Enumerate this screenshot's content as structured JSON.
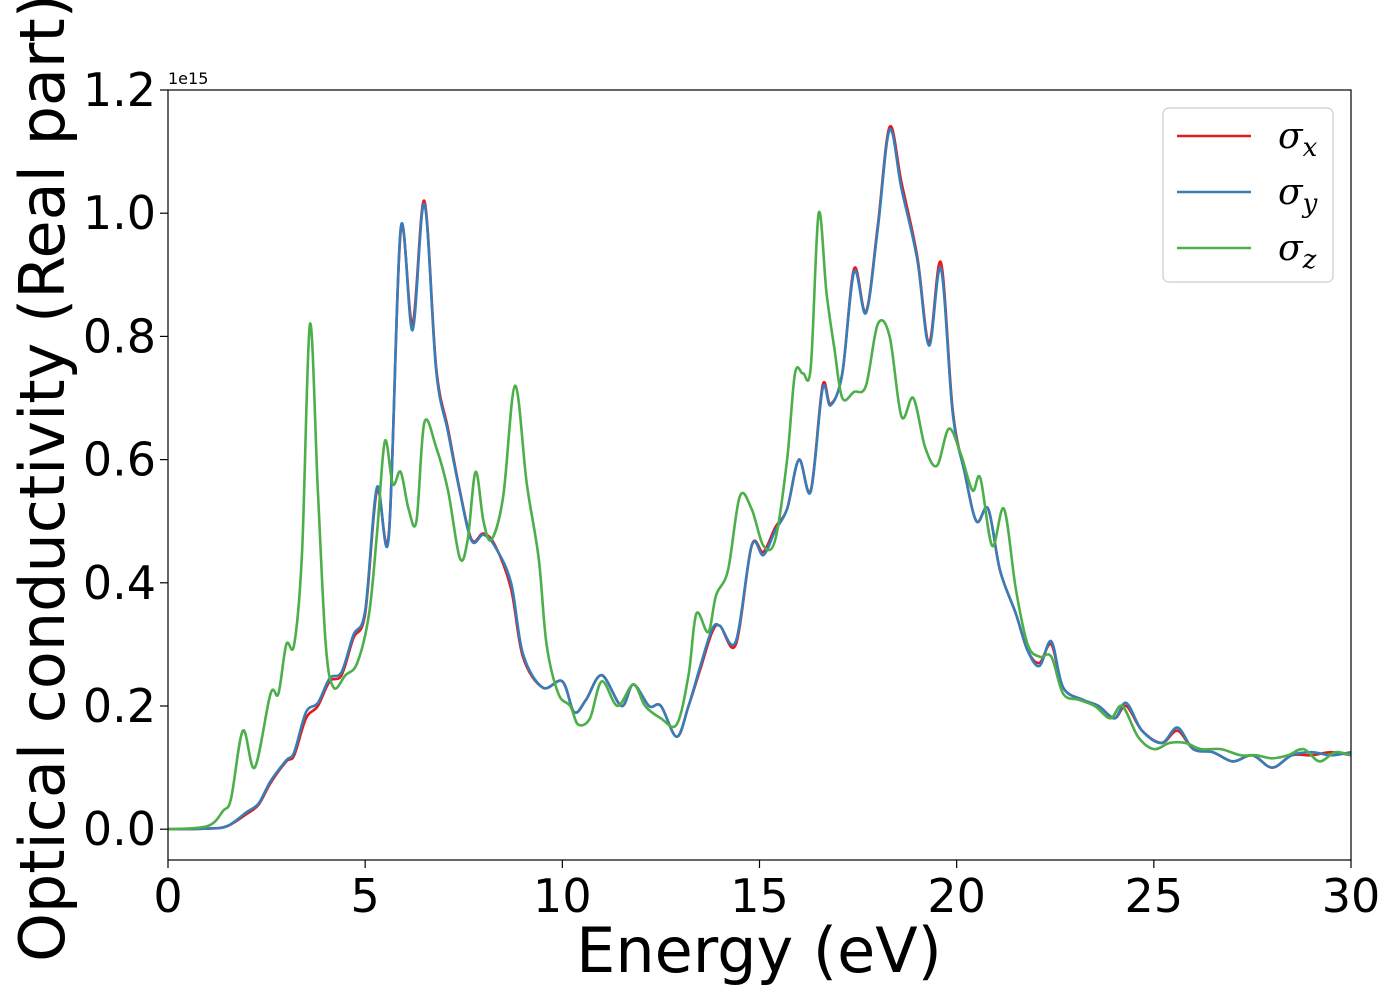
{
  "chart_data": {
    "type": "line",
    "xlabel": "Energy (eV)",
    "ylabel": "Optical conductivity (Real part)",
    "y_offset_label": "1e15",
    "xlim": [
      0,
      30
    ],
    "ylim": [
      -0.05,
      1.2
    ],
    "xticks": [
      0,
      5,
      10,
      15,
      20,
      25,
      30
    ],
    "xtick_labels": [
      "0",
      "5",
      "10",
      "15",
      "20",
      "25",
      "30"
    ],
    "yticks": [
      0.0,
      0.2,
      0.4,
      0.6,
      0.8,
      1.0,
      1.2
    ],
    "ytick_labels": [
      "0.0",
      "0.2",
      "0.4",
      "0.6",
      "0.8",
      "1.0",
      "1.2"
    ],
    "grid": false,
    "legend_position": "top-right",
    "series": [
      {
        "name": "σx",
        "symbol": "σ",
        "subscript": "x",
        "color": "#e41a1c",
        "points": [
          [
            0,
            0
          ],
          [
            1,
            0.001
          ],
          [
            1.5,
            0.005
          ],
          [
            2,
            0.025
          ],
          [
            2.3,
            0.04
          ],
          [
            2.6,
            0.075
          ],
          [
            3,
            0.11
          ],
          [
            3.2,
            0.12
          ],
          [
            3.5,
            0.18
          ],
          [
            3.8,
            0.2
          ],
          [
            4.1,
            0.24
          ],
          [
            4.4,
            0.25
          ],
          [
            4.7,
            0.31
          ],
          [
            5,
            0.35
          ],
          [
            5.3,
            0.55
          ],
          [
            5.6,
            0.48
          ],
          [
            5.9,
            0.97
          ],
          [
            6.2,
            0.82
          ],
          [
            6.5,
            1.02
          ],
          [
            6.8,
            0.75
          ],
          [
            7.1,
            0.65
          ],
          [
            7.4,
            0.55
          ],
          [
            7.7,
            0.47
          ],
          [
            8.0,
            0.48
          ],
          [
            8.3,
            0.46
          ],
          [
            8.7,
            0.39
          ],
          [
            9.0,
            0.28
          ],
          [
            9.5,
            0.23
          ],
          [
            10,
            0.24
          ],
          [
            10.3,
            0.19
          ],
          [
            10.6,
            0.21
          ],
          [
            11,
            0.25
          ],
          [
            11.5,
            0.2
          ],
          [
            11.8,
            0.235
          ],
          [
            12.2,
            0.2
          ],
          [
            12.5,
            0.2
          ],
          [
            12.9,
            0.15
          ],
          [
            13.2,
            0.2
          ],
          [
            13.5,
            0.26
          ],
          [
            13.8,
            0.32
          ],
          [
            14.0,
            0.33
          ],
          [
            14.4,
            0.3
          ],
          [
            14.8,
            0.46
          ],
          [
            15.1,
            0.45
          ],
          [
            15.4,
            0.49
          ],
          [
            15.7,
            0.52
          ],
          [
            16.0,
            0.6
          ],
          [
            16.3,
            0.55
          ],
          [
            16.6,
            0.72
          ],
          [
            16.8,
            0.69
          ],
          [
            17.1,
            0.74
          ],
          [
            17.4,
            0.91
          ],
          [
            17.7,
            0.84
          ],
          [
            18.0,
            0.98
          ],
          [
            18.3,
            1.14
          ],
          [
            18.6,
            1.05
          ],
          [
            19.0,
            0.93
          ],
          [
            19.3,
            0.79
          ],
          [
            19.6,
            0.92
          ],
          [
            19.9,
            0.68
          ],
          [
            20.2,
            0.58
          ],
          [
            20.5,
            0.5
          ],
          [
            20.8,
            0.52
          ],
          [
            21.1,
            0.42
          ],
          [
            21.5,
            0.35
          ],
          [
            21.8,
            0.29
          ],
          [
            22.1,
            0.27
          ],
          [
            22.4,
            0.3
          ],
          [
            22.7,
            0.23
          ],
          [
            23.2,
            0.21
          ],
          [
            23.6,
            0.2
          ],
          [
            24.0,
            0.18
          ],
          [
            24.3,
            0.2
          ],
          [
            24.7,
            0.16
          ],
          [
            25.2,
            0.14
          ],
          [
            25.6,
            0.16
          ],
          [
            26.0,
            0.13
          ],
          [
            26.5,
            0.125
          ],
          [
            27.0,
            0.11
          ],
          [
            27.5,
            0.12
          ],
          [
            28.0,
            0.1
          ],
          [
            28.5,
            0.12
          ],
          [
            29.0,
            0.12
          ],
          [
            29.5,
            0.125
          ],
          [
            30,
            0.12
          ]
        ]
      },
      {
        "name": "σy",
        "symbol": "σ",
        "subscript": "y",
        "color": "#377eb8",
        "points": [
          [
            0,
            0
          ],
          [
            1,
            0.001
          ],
          [
            1.5,
            0.005
          ],
          [
            2,
            0.028
          ],
          [
            2.3,
            0.042
          ],
          [
            2.6,
            0.078
          ],
          [
            3,
            0.112
          ],
          [
            3.2,
            0.125
          ],
          [
            3.5,
            0.19
          ],
          [
            3.8,
            0.205
          ],
          [
            4.1,
            0.245
          ],
          [
            4.4,
            0.255
          ],
          [
            4.7,
            0.315
          ],
          [
            5,
            0.355
          ],
          [
            5.3,
            0.555
          ],
          [
            5.6,
            0.475
          ],
          [
            5.9,
            0.975
          ],
          [
            6.2,
            0.81
          ],
          [
            6.5,
            1.015
          ],
          [
            6.8,
            0.745
          ],
          [
            7.1,
            0.645
          ],
          [
            7.4,
            0.548
          ],
          [
            7.7,
            0.468
          ],
          [
            8.0,
            0.478
          ],
          [
            8.3,
            0.458
          ],
          [
            8.7,
            0.4
          ],
          [
            9.0,
            0.285
          ],
          [
            9.5,
            0.23
          ],
          [
            10,
            0.24
          ],
          [
            10.3,
            0.19
          ],
          [
            10.6,
            0.21
          ],
          [
            11,
            0.25
          ],
          [
            11.5,
            0.2
          ],
          [
            11.8,
            0.235
          ],
          [
            12.2,
            0.2
          ],
          [
            12.5,
            0.2
          ],
          [
            12.9,
            0.15
          ],
          [
            13.2,
            0.2
          ],
          [
            13.5,
            0.265
          ],
          [
            13.8,
            0.325
          ],
          [
            14.0,
            0.33
          ],
          [
            14.4,
            0.305
          ],
          [
            14.8,
            0.46
          ],
          [
            15.1,
            0.445
          ],
          [
            15.4,
            0.485
          ],
          [
            15.7,
            0.52
          ],
          [
            16.0,
            0.6
          ],
          [
            16.3,
            0.548
          ],
          [
            16.6,
            0.715
          ],
          [
            16.8,
            0.688
          ],
          [
            17.1,
            0.74
          ],
          [
            17.4,
            0.905
          ],
          [
            17.7,
            0.838
          ],
          [
            18.0,
            0.975
          ],
          [
            18.3,
            1.135
          ],
          [
            18.6,
            1.04
          ],
          [
            19.0,
            0.925
          ],
          [
            19.3,
            0.785
          ],
          [
            19.6,
            0.91
          ],
          [
            19.9,
            0.675
          ],
          [
            20.2,
            0.58
          ],
          [
            20.5,
            0.5
          ],
          [
            20.8,
            0.52
          ],
          [
            21.1,
            0.42
          ],
          [
            21.5,
            0.35
          ],
          [
            21.8,
            0.29
          ],
          [
            22.1,
            0.265
          ],
          [
            22.4,
            0.305
          ],
          [
            22.7,
            0.23
          ],
          [
            23.2,
            0.21
          ],
          [
            23.6,
            0.2
          ],
          [
            24.0,
            0.18
          ],
          [
            24.3,
            0.205
          ],
          [
            24.7,
            0.16
          ],
          [
            25.2,
            0.14
          ],
          [
            25.6,
            0.165
          ],
          [
            26.0,
            0.13
          ],
          [
            26.5,
            0.125
          ],
          [
            27.0,
            0.11
          ],
          [
            27.5,
            0.12
          ],
          [
            28.0,
            0.1
          ],
          [
            28.5,
            0.12
          ],
          [
            29.0,
            0.125
          ],
          [
            29.5,
            0.12
          ],
          [
            30,
            0.125
          ]
        ]
      },
      {
        "name": "σz",
        "symbol": "σ",
        "subscript": "z",
        "color": "#4daf4a",
        "points": [
          [
            0,
            0
          ],
          [
            1,
            0.005
          ],
          [
            1.4,
            0.03
          ],
          [
            1.6,
            0.05
          ],
          [
            1.9,
            0.16
          ],
          [
            2.2,
            0.1
          ],
          [
            2.6,
            0.22
          ],
          [
            2.8,
            0.22
          ],
          [
            3.0,
            0.3
          ],
          [
            3.2,
            0.3
          ],
          [
            3.4,
            0.45
          ],
          [
            3.6,
            0.82
          ],
          [
            3.8,
            0.55
          ],
          [
            4.0,
            0.3
          ],
          [
            4.2,
            0.23
          ],
          [
            4.5,
            0.25
          ],
          [
            4.8,
            0.27
          ],
          [
            5.1,
            0.35
          ],
          [
            5.3,
            0.48
          ],
          [
            5.5,
            0.63
          ],
          [
            5.7,
            0.56
          ],
          [
            5.9,
            0.58
          ],
          [
            6.1,
            0.52
          ],
          [
            6.3,
            0.5
          ],
          [
            6.5,
            0.66
          ],
          [
            6.8,
            0.62
          ],
          [
            7.1,
            0.55
          ],
          [
            7.4,
            0.44
          ],
          [
            7.6,
            0.47
          ],
          [
            7.8,
            0.58
          ],
          [
            8.0,
            0.5
          ],
          [
            8.2,
            0.47
          ],
          [
            8.5,
            0.54
          ],
          [
            8.8,
            0.72
          ],
          [
            9.1,
            0.56
          ],
          [
            9.4,
            0.44
          ],
          [
            9.6,
            0.3
          ],
          [
            9.9,
            0.22
          ],
          [
            10.2,
            0.2
          ],
          [
            10.4,
            0.17
          ],
          [
            10.7,
            0.18
          ],
          [
            11.0,
            0.24
          ],
          [
            11.4,
            0.2
          ],
          [
            11.8,
            0.235
          ],
          [
            12.1,
            0.2
          ],
          [
            12.5,
            0.18
          ],
          [
            12.9,
            0.17
          ],
          [
            13.2,
            0.25
          ],
          [
            13.4,
            0.35
          ],
          [
            13.7,
            0.32
          ],
          [
            13.9,
            0.38
          ],
          [
            14.2,
            0.42
          ],
          [
            14.5,
            0.54
          ],
          [
            14.8,
            0.52
          ],
          [
            15.1,
            0.46
          ],
          [
            15.4,
            0.47
          ],
          [
            15.7,
            0.6
          ],
          [
            15.9,
            0.74
          ],
          [
            16.1,
            0.74
          ],
          [
            16.3,
            0.75
          ],
          [
            16.5,
            1.0
          ],
          [
            16.7,
            0.87
          ],
          [
            16.9,
            0.78
          ],
          [
            17.1,
            0.7
          ],
          [
            17.4,
            0.71
          ],
          [
            17.7,
            0.72
          ],
          [
            18.0,
            0.82
          ],
          [
            18.3,
            0.8
          ],
          [
            18.6,
            0.67
          ],
          [
            18.9,
            0.7
          ],
          [
            19.2,
            0.62
          ],
          [
            19.5,
            0.59
          ],
          [
            19.8,
            0.65
          ],
          [
            20.1,
            0.61
          ],
          [
            20.4,
            0.55
          ],
          [
            20.6,
            0.57
          ],
          [
            20.9,
            0.46
          ],
          [
            21.2,
            0.52
          ],
          [
            21.5,
            0.39
          ],
          [
            21.8,
            0.3
          ],
          [
            22.1,
            0.28
          ],
          [
            22.4,
            0.28
          ],
          [
            22.7,
            0.22
          ],
          [
            23.1,
            0.21
          ],
          [
            23.5,
            0.2
          ],
          [
            23.9,
            0.18
          ],
          [
            24.2,
            0.2
          ],
          [
            24.6,
            0.15
          ],
          [
            25.0,
            0.13
          ],
          [
            25.4,
            0.14
          ],
          [
            25.8,
            0.14
          ],
          [
            26.2,
            0.13
          ],
          [
            26.7,
            0.13
          ],
          [
            27.2,
            0.12
          ],
          [
            27.6,
            0.12
          ],
          [
            28.0,
            0.115
          ],
          [
            28.4,
            0.12
          ],
          [
            28.8,
            0.13
          ],
          [
            29.2,
            0.11
          ],
          [
            29.6,
            0.125
          ],
          [
            30,
            0.12
          ]
        ]
      }
    ]
  }
}
